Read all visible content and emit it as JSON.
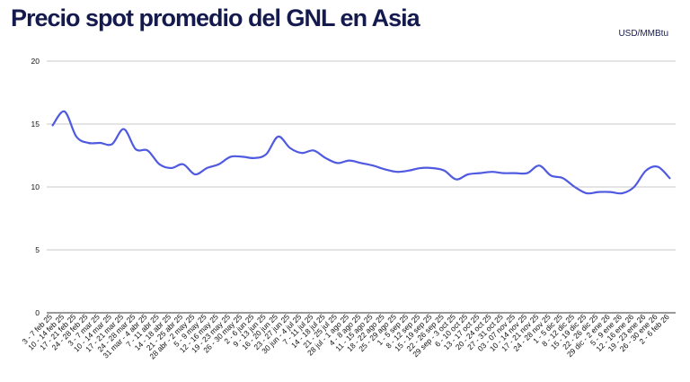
{
  "title": "Precio spot promedio del GNL en Asia",
  "unit_label": "USD/MMBtu",
  "chart_data": {
    "type": "line",
    "title": "Precio spot promedio del GNL en Asia",
    "xlabel": "",
    "ylabel": "USD/MMBtu",
    "ylim": [
      0,
      20
    ],
    "yticks": [
      0,
      5,
      10,
      15,
      20
    ],
    "grid": true,
    "line_color": "#4f5ae0",
    "categories": [
      "3 - 7 feb 25",
      "10 - 14 feb 25",
      "17 - 21 feb 25",
      "24 - 28 feb 25",
      "3 - 7 mar 25",
      "10 - 14 mar 25",
      "17 - 21 mar 25",
      "24 - 28 mar 25",
      "31 mar - 4 abr 25",
      "7 - 11 abr 25",
      "14 - 18 abr 25",
      "21 - 25 abr 25",
      "28 abr - 2 may 25",
      "5 - 9 may 25",
      "12 - 16 may 25",
      "19 - 23 may 25",
      "26 - 30 may 25",
      "2 - 6 jun 25",
      "9 - 13 jun 25",
      "16 - 20 jun 25",
      "23 - 27 jun 25",
      "30 jun - 4 jul 25",
      "7 - 11 jul 25",
      "14 - 18 jul 25",
      "21 - 25 jul 25",
      "28 jul - 1 ago 25",
      "4 - 8 ago 25",
      "11 - 15 ago 25",
      "18 - 22 ago 25",
      "25 - 29 ago 25",
      "1 - 5 sep 25",
      "8 - 12 sep 25",
      "15 - 19 sep 25",
      "22 - 26 sep 25",
      "29 sep - 3 oct 25",
      "6 - 10 oct 25",
      "13 - 17 oct 25",
      "20 - 24 oct 25",
      "27 - 31 oct 25",
      "03 - 07 nov 25",
      "10 - 14 nov 25",
      "17 - 21 nov 25",
      "24 - 28 nov 25",
      "1 - 5 dic 25",
      "8 - 12 dic 25",
      "15 - 19 dic 25",
      "22 - 26 dic 25",
      "29 dic - 2 ene 26",
      "5 - 9 ene 26",
      "12 - 16 ene 26",
      "19 - 23 ene 26",
      "26 - 30 ene 26",
      "2 - 6 feb 26"
    ],
    "series": [
      {
        "values": [
          14.9,
          16.0,
          14.0,
          13.5,
          13.5,
          13.4,
          14.6,
          13.0,
          12.9,
          11.8,
          11.5,
          11.8,
          11.0,
          11.5,
          11.8,
          12.4,
          12.4,
          12.3,
          12.6,
          14.0,
          13.1,
          12.7,
          12.9,
          12.3,
          11.9,
          12.1,
          11.9,
          11.7,
          11.4,
          11.2,
          11.3,
          11.5,
          11.5,
          11.3,
          10.6,
          11.0,
          11.1,
          11.2,
          11.1,
          11.1,
          11.1,
          11.7,
          10.9,
          10.7,
          10.0,
          9.5,
          9.6,
          9.6,
          9.5,
          10.0,
          11.3,
          11.6,
          10.7
        ]
      }
    ]
  }
}
